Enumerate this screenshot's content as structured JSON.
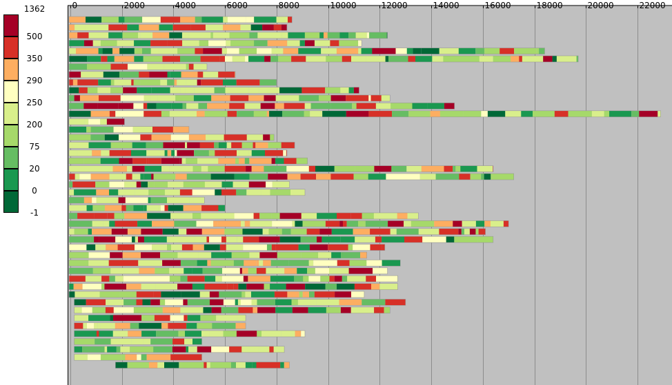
{
  "chart_data": {
    "type": "bar",
    "orientation": "horizontal-stacked-segments",
    "title": "",
    "xlabel": "",
    "ylabel": "",
    "xlim": [
      0,
      23200
    ],
    "x_ticks": [
      0,
      2000,
      4000,
      6000,
      8000,
      10000,
      12000,
      14000,
      16000,
      18000,
      20000,
      22000
    ],
    "x_tick_labels": [
      "0",
      "2000",
      "4000",
      "6000",
      "8000",
      "10000",
      "12000",
      "14000",
      "16000",
      "18000",
      "20000",
      "22000"
    ],
    "grid": true,
    "background": "#c0c0c0",
    "legend": {
      "position": "left",
      "labels": [
        "1362",
        "500",
        "350",
        "290",
        "250",
        "200",
        "75",
        "20",
        "0",
        "-1"
      ],
      "colors": [
        "#a50026",
        "#d73027",
        "#fdae61",
        "#ffffc0",
        "#d9ef8b",
        "#a6d96a",
        "#66bd63",
        "#1a9850",
        "#006837"
      ]
    },
    "row_ends": [
      8600,
      8400,
      12300,
      11300,
      18400,
      19700,
      5300,
      6400,
      8000,
      11200,
      12400,
      14900,
      22900,
      2100,
      4600,
      7900,
      8700,
      8400,
      9200,
      16400,
      17200,
      8500,
      9100,
      5200,
      6000,
      13500,
      17000,
      16100,
      16400,
      12200,
      11500,
      12800,
      12300,
      12700,
      12700,
      11400,
      13000,
      12400,
      6800,
      6800,
      9100,
      5100,
      8300,
      5100,
      8500
    ]
  }
}
